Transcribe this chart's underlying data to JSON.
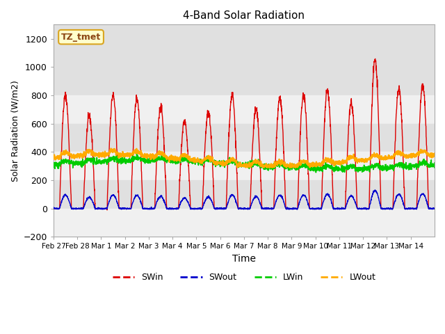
{
  "title": "4-Band Solar Radiation",
  "xlabel": "Time",
  "ylabel": "Solar Radiation (W/m2)",
  "ylim": [
    -200,
    1300
  ],
  "yticks": [
    -200,
    0,
    200,
    400,
    600,
    800,
    1000,
    1200
  ],
  "x_labels": [
    "Feb 27",
    "Feb 28",
    "Mar 1",
    "Mar 2",
    "Mar 3",
    "Mar 4",
    "Mar 5",
    "Mar 6",
    "Mar 7",
    "Mar 8",
    "Mar 9",
    "Mar 10",
    "Mar 11",
    "Mar 12",
    "Mar 13",
    "Mar 14"
  ],
  "legend_label": "TZ_tmet",
  "series": {
    "SWin": {
      "color": "#dd0000",
      "lw": 1.0
    },
    "SWout": {
      "color": "#0000cc",
      "lw": 1.0
    },
    "LWin": {
      "color": "#00cc00",
      "lw": 1.2
    },
    "LWout": {
      "color": "#ffaa00",
      "lw": 1.5
    }
  },
  "bg_bands": [
    {
      "ymin": 800,
      "ymax": 1300,
      "color": "#e0e0e0"
    },
    {
      "ymin": 600,
      "ymax": 800,
      "color": "#f0f0f0"
    },
    {
      "ymin": 400,
      "ymax": 600,
      "color": "#e0e0e0"
    },
    {
      "ymin": 200,
      "ymax": 400,
      "color": "#f0f0f0"
    },
    {
      "ymin": 0,
      "ymax": 200,
      "color": "#e0e0e0"
    },
    {
      "ymin": -200,
      "ymax": 0,
      "color": "#f0f0f0"
    }
  ],
  "n_days": 16,
  "pts_per_day": 144,
  "swin_peaks": [
    800,
    650,
    800,
    780,
    720,
    620,
    680,
    800,
    700,
    780,
    800,
    830,
    750,
    1050,
    850,
    870
  ]
}
